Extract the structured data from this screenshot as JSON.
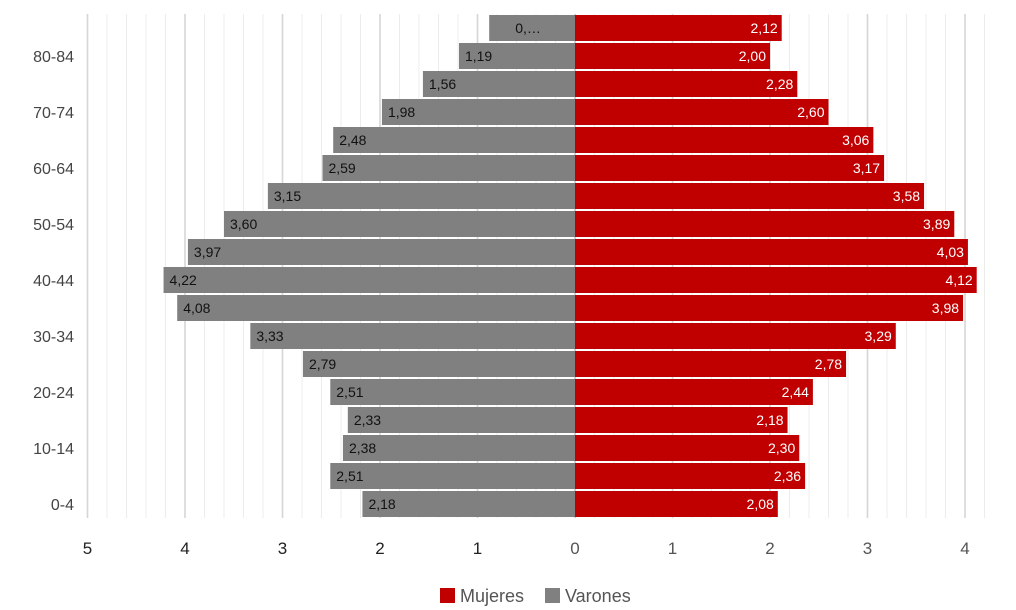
{
  "chart_data": {
    "type": "bar",
    "orientation": "horizontal",
    "subtype": "population-pyramid",
    "y_tick_labels": [
      "0-4",
      "10-14",
      "20-24",
      "30-34",
      "40-44",
      "50-54",
      "60-64",
      "70-74",
      "80-84"
    ],
    "x_tick_labels": [
      "5",
      "4",
      "3",
      "2",
      "1",
      "0",
      "1",
      "2",
      "3",
      "4"
    ],
    "series": [
      {
        "name": "Mujeres",
        "color": "#C00000",
        "side": "right",
        "values": [
          2.08,
          2.36,
          2.3,
          2.18,
          2.44,
          2.78,
          3.29,
          3.98,
          4.12,
          4.03,
          3.89,
          3.58,
          3.17,
          3.06,
          2.6,
          2.28,
          2.0,
          2.12
        ],
        "labels": [
          "2,08",
          "2,36",
          "2,30",
          "2,18",
          "2,44",
          "2,78",
          "3,29",
          "3,98",
          "4,12",
          "4,03",
          "3,89",
          "3,58",
          "3,17",
          "3,06",
          "2,60",
          "2,28",
          "2,00",
          "2,12"
        ]
      },
      {
        "name": "Varones",
        "color": "#808080",
        "side": "left",
        "values": [
          2.18,
          2.51,
          2.38,
          2.33,
          2.51,
          2.79,
          3.33,
          4.08,
          4.22,
          3.97,
          3.6,
          3.15,
          2.59,
          2.48,
          1.98,
          1.56,
          1.19,
          0.88
        ],
        "labels": [
          "2,18",
          "2,51",
          "2,38",
          "2,33",
          "2,51",
          "2,79",
          "3,33",
          "4,08",
          "4,22",
          "3,97",
          "3,60",
          "3,15",
          "2,59",
          "2,48",
          "1,98",
          "1,56",
          "1,19",
          "0,…"
        ]
      }
    ],
    "xlim": [
      -5,
      4.2
    ],
    "grid": true,
    "legend_position": "bottom"
  }
}
